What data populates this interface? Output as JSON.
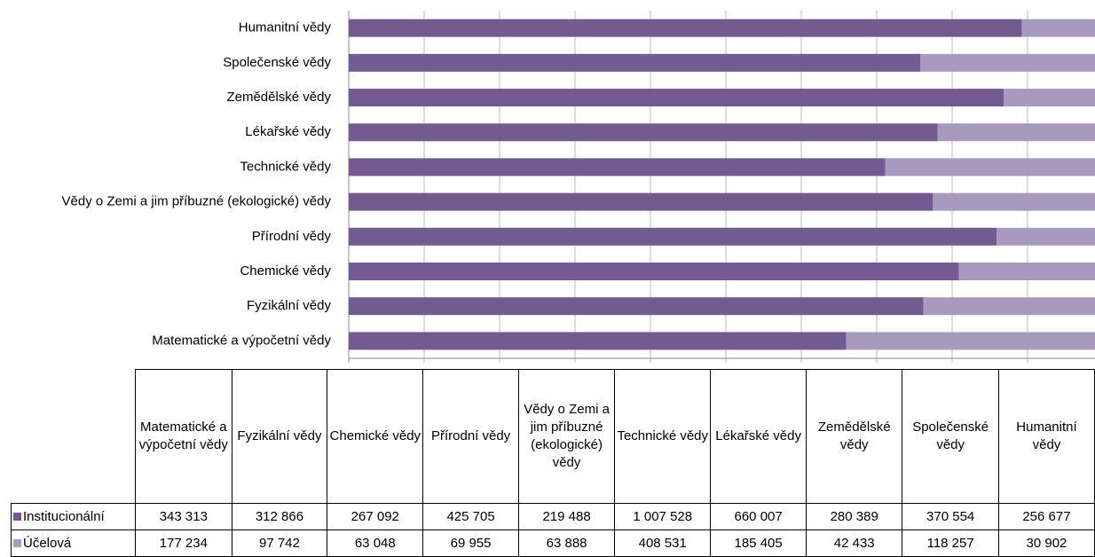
{
  "chart_data": {
    "type": "bar100",
    "categories": [
      "Matematické a výpočetní vědy",
      "Fyzikální vědy",
      "Chemické vědy",
      "Přírodní vědy",
      "Vědy o Zemi a jim příbuzné (ekologické) vědy",
      "Technické vědy",
      "Lékařské vědy",
      "Zemědělské vědy",
      "Společenské vědy",
      "Humanitní vědy"
    ],
    "series": [
      {
        "name": "Institucionální",
        "color": "#735b91",
        "values": [
          343313,
          312866,
          267092,
          425705,
          219488,
          1007528,
          660007,
          280389,
          370554,
          256677
        ],
        "value_labels": [
          "343 313",
          "312 866",
          "267 092",
          "425 705",
          "219 488",
          "1 007 528",
          "660 007",
          "280 389",
          "370 554",
          "256 677"
        ]
      },
      {
        "name": "Účelová",
        "color": "#a899bf",
        "values": [
          177234,
          97742,
          63048,
          69955,
          63888,
          408531,
          185405,
          42433,
          118257,
          30902
        ],
        "value_labels": [
          "177 234",
          "97 742",
          "63 048",
          "69 955",
          "63 888",
          "408 531",
          "185 405",
          "42 433",
          "118 257",
          "30 902"
        ]
      }
    ],
    "xlim": [
      0,
      100
    ],
    "xticks": [
      0,
      10,
      20,
      30,
      40,
      50,
      60,
      70,
      80,
      90,
      100
    ],
    "grid": true
  }
}
